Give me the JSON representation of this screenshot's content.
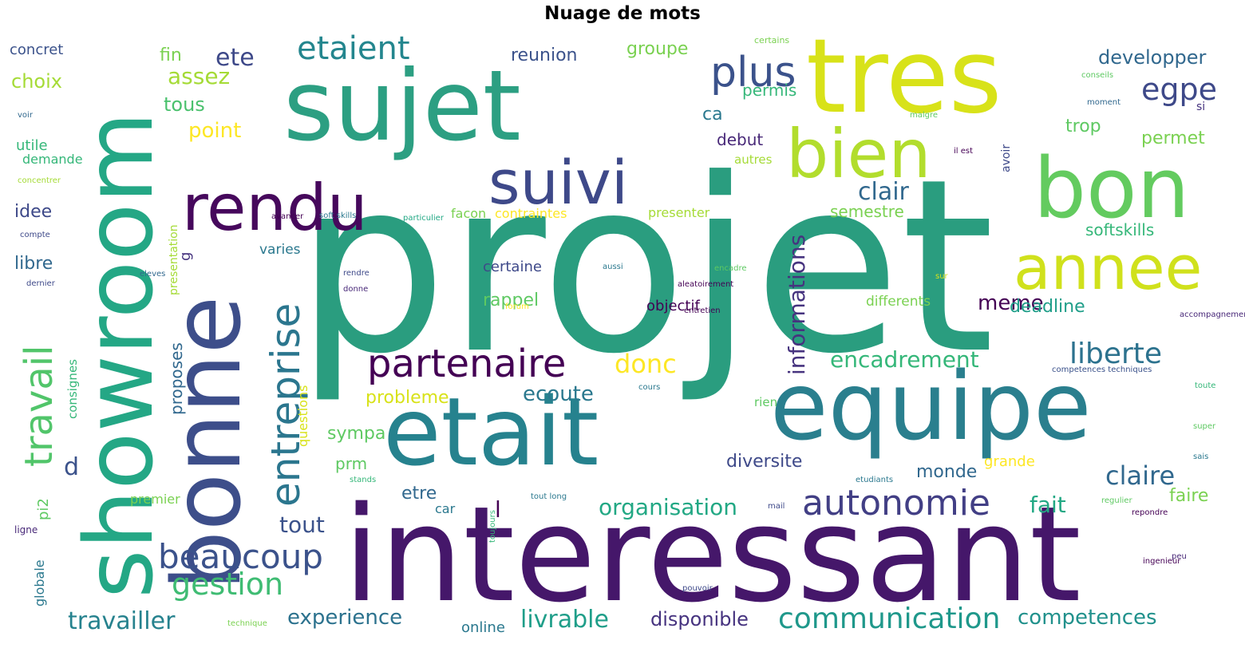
{
  "title": "Nuage de mots",
  "colormap": "viridis",
  "words": [
    {
      "text": "projet",
      "color": "#2a9d7f"
    },
    {
      "text": "interessant",
      "color": "#45176a"
    },
    {
      "text": "tres",
      "color": "#d8e219"
    },
    {
      "text": "sujet",
      "color": "#2c9f82"
    },
    {
      "text": "showroom",
      "color": "#24a785"
    },
    {
      "text": "bonne",
      "color": "#3d4e8a"
    },
    {
      "text": "etait",
      "color": "#26828e"
    },
    {
      "text": "equipe",
      "color": "#2a7f8e"
    },
    {
      "text": "bon",
      "color": "#63cb5f"
    },
    {
      "text": "bien",
      "color": "#b2dd2d"
    },
    {
      "text": "rendu",
      "color": "#46085c"
    },
    {
      "text": "suivi",
      "color": "#3e4989"
    },
    {
      "text": "annee",
      "color": "#d0e11c"
    },
    {
      "text": "entreprise",
      "color": "#2b768e"
    },
    {
      "text": "partenaire",
      "color": "#440154"
    },
    {
      "text": "travail",
      "color": "#51c56a"
    },
    {
      "text": "autonomie",
      "color": "#423f85"
    },
    {
      "text": "beaucoup",
      "color": "#3b528b"
    },
    {
      "text": "communication",
      "color": "#1f988b"
    },
    {
      "text": "liberte",
      "color": "#2c728e"
    },
    {
      "text": "gestion",
      "color": "#3fbc73"
    },
    {
      "text": "plus",
      "color": "#3b528b"
    },
    {
      "text": "etaient",
      "color": "#24868e"
    },
    {
      "text": "egpe",
      "color": "#3e4989"
    },
    {
      "text": "travailler",
      "color": "#26828e"
    },
    {
      "text": "livrable",
      "color": "#1f9e89"
    },
    {
      "text": "competences",
      "color": "#21918c"
    },
    {
      "text": "experience",
      "color": "#2c728e"
    },
    {
      "text": "organisation",
      "color": "#22a884"
    },
    {
      "text": "encadrement",
      "color": "#35b779"
    },
    {
      "text": "donc",
      "color": "#fde725"
    },
    {
      "text": "clair",
      "color": "#31688e"
    },
    {
      "text": "claire",
      "color": "#31688e"
    },
    {
      "text": "ecoute",
      "color": "#2a788e"
    },
    {
      "text": "assez",
      "color": "#a5db36"
    },
    {
      "text": "ete",
      "color": "#3e4989"
    },
    {
      "text": "tous",
      "color": "#4ac16d"
    },
    {
      "text": "informations",
      "color": "#46337f"
    },
    {
      "text": "disponible",
      "color": "#46337f"
    },
    {
      "text": "tout",
      "color": "#3b528b"
    },
    {
      "text": "fait",
      "color": "#22a884"
    },
    {
      "text": "meme",
      "color": "#440154"
    },
    {
      "text": "deadline",
      "color": "#1f9e89"
    },
    {
      "text": "developper",
      "color": "#31688e"
    },
    {
      "text": "point",
      "color": "#fde725"
    },
    {
      "text": "reunion",
      "color": "#3b528b"
    },
    {
      "text": "groupe",
      "color": "#7ad151"
    },
    {
      "text": "fin",
      "color": "#7ad151"
    },
    {
      "text": "choix",
      "color": "#a5db36"
    },
    {
      "text": "concret",
      "color": "#3b528b"
    },
    {
      "text": "softskills",
      "color": "#35b779"
    },
    {
      "text": "semestre",
      "color": "#7ad151"
    },
    {
      "text": "d",
      "color": "#3b528b"
    },
    {
      "text": "monde",
      "color": "#31688e"
    },
    {
      "text": "diversite",
      "color": "#3e4989"
    },
    {
      "text": "faire",
      "color": "#7ad151"
    },
    {
      "text": "permet",
      "color": "#7ad151"
    },
    {
      "text": "trop",
      "color": "#5ec962"
    },
    {
      "text": "permis",
      "color": "#35b779"
    },
    {
      "text": "ca",
      "color": "#2a788e"
    },
    {
      "text": "debut",
      "color": "#482878"
    },
    {
      "text": "autres",
      "color": "#a5db36"
    },
    {
      "text": "facon",
      "color": "#7ad151"
    },
    {
      "text": "contraintes",
      "color": "#fde725"
    },
    {
      "text": "presenter",
      "color": "#a5db36"
    },
    {
      "text": "rappel",
      "color": "#5ec962"
    },
    {
      "text": "certaine",
      "color": "#3e4989"
    },
    {
      "text": "objectif",
      "color": "#440154"
    },
    {
      "text": "differents",
      "color": "#7ad151"
    },
    {
      "text": "probleme",
      "color": "#d8e219"
    },
    {
      "text": "sympa",
      "color": "#5ec962"
    },
    {
      "text": "prm",
      "color": "#5ec962"
    },
    {
      "text": "etre",
      "color": "#31688e"
    },
    {
      "text": "l",
      "color": "#440154"
    },
    {
      "text": "car",
      "color": "#2a788e"
    },
    {
      "text": "grande",
      "color": "#fde725"
    },
    {
      "text": "online",
      "color": "#2a788e"
    },
    {
      "text": "idee",
      "color": "#3e4989"
    },
    {
      "text": "libre",
      "color": "#31688e"
    },
    {
      "text": "utile",
      "color": "#35b779"
    },
    {
      "text": "demande",
      "color": "#35b779"
    },
    {
      "text": "proposes",
      "color": "#31688e"
    },
    {
      "text": "varies",
      "color": "#2a788e"
    },
    {
      "text": "consignes",
      "color": "#35b779"
    },
    {
      "text": "pi2",
      "color": "#5ec962"
    },
    {
      "text": "globale",
      "color": "#2a788e"
    },
    {
      "text": "premier",
      "color": "#7ad151"
    },
    {
      "text": "questions",
      "color": "#d8e219"
    },
    {
      "text": "presentation",
      "color": "#a5db36"
    },
    {
      "text": "avoir",
      "color": "#3e4989"
    },
    {
      "text": "rien",
      "color": "#5ec962"
    },
    {
      "text": "certains",
      "color": "#7ad151"
    },
    {
      "text": "conseils",
      "color": "#5ec962"
    },
    {
      "text": "moment",
      "color": "#31688e"
    },
    {
      "text": "malgre",
      "color": "#5ec962"
    },
    {
      "text": "si",
      "color": "#46337f"
    },
    {
      "text": "il est",
      "color": "#440154"
    },
    {
      "text": "voir",
      "color": "#31688e"
    },
    {
      "text": "concentrer",
      "color": "#a5db36"
    },
    {
      "text": "compte",
      "color": "#3e4989"
    },
    {
      "text": "dernier",
      "color": "#3e4989"
    },
    {
      "text": "eleves",
      "color": "#31688e"
    },
    {
      "text": "avancer",
      "color": "#440154"
    },
    {
      "text": "soft skills",
      "color": "#2a788e"
    },
    {
      "text": "particulier",
      "color": "#22a884"
    },
    {
      "text": "rendre",
      "color": "#3e4989"
    },
    {
      "text": "donne",
      "color": "#482878"
    },
    {
      "text": "aussi",
      "color": "#2a788e"
    },
    {
      "text": "encadre",
      "color": "#5ec962"
    },
    {
      "text": "aleatoirement",
      "color": "#440154"
    },
    {
      "text": "entretien",
      "color": "#440154"
    },
    {
      "text": "forum",
      "color": "#fde725"
    },
    {
      "text": "sur",
      "color": "#d8e219"
    },
    {
      "text": "accompagnement",
      "color": "#482878"
    },
    {
      "text": "competences techniques",
      "color": "#3b528b"
    },
    {
      "text": "cours",
      "color": "#2a788e"
    },
    {
      "text": "toute",
      "color": "#35b779"
    },
    {
      "text": "super",
      "color": "#5ec962"
    },
    {
      "text": "sais",
      "color": "#2a788e"
    },
    {
      "text": "etudiants",
      "color": "#2a788e"
    },
    {
      "text": "regulier",
      "color": "#5ec962"
    },
    {
      "text": "repondre",
      "color": "#440154"
    },
    {
      "text": "mail",
      "color": "#3e4989"
    },
    {
      "text": "ingenieur",
      "color": "#440154"
    },
    {
      "text": "peu",
      "color": "#482878"
    },
    {
      "text": "tout long",
      "color": "#2a788e"
    },
    {
      "text": "pouvoir",
      "color": "#3e4989"
    },
    {
      "text": "toujours",
      "color": "#35b779"
    },
    {
      "text": "stands",
      "color": "#35b779"
    },
    {
      "text": "technique",
      "color": "#7ad151"
    },
    {
      "text": "ligne",
      "color": "#482878"
    },
    {
      "text": "g",
      "color": "#46337f"
    }
  ]
}
